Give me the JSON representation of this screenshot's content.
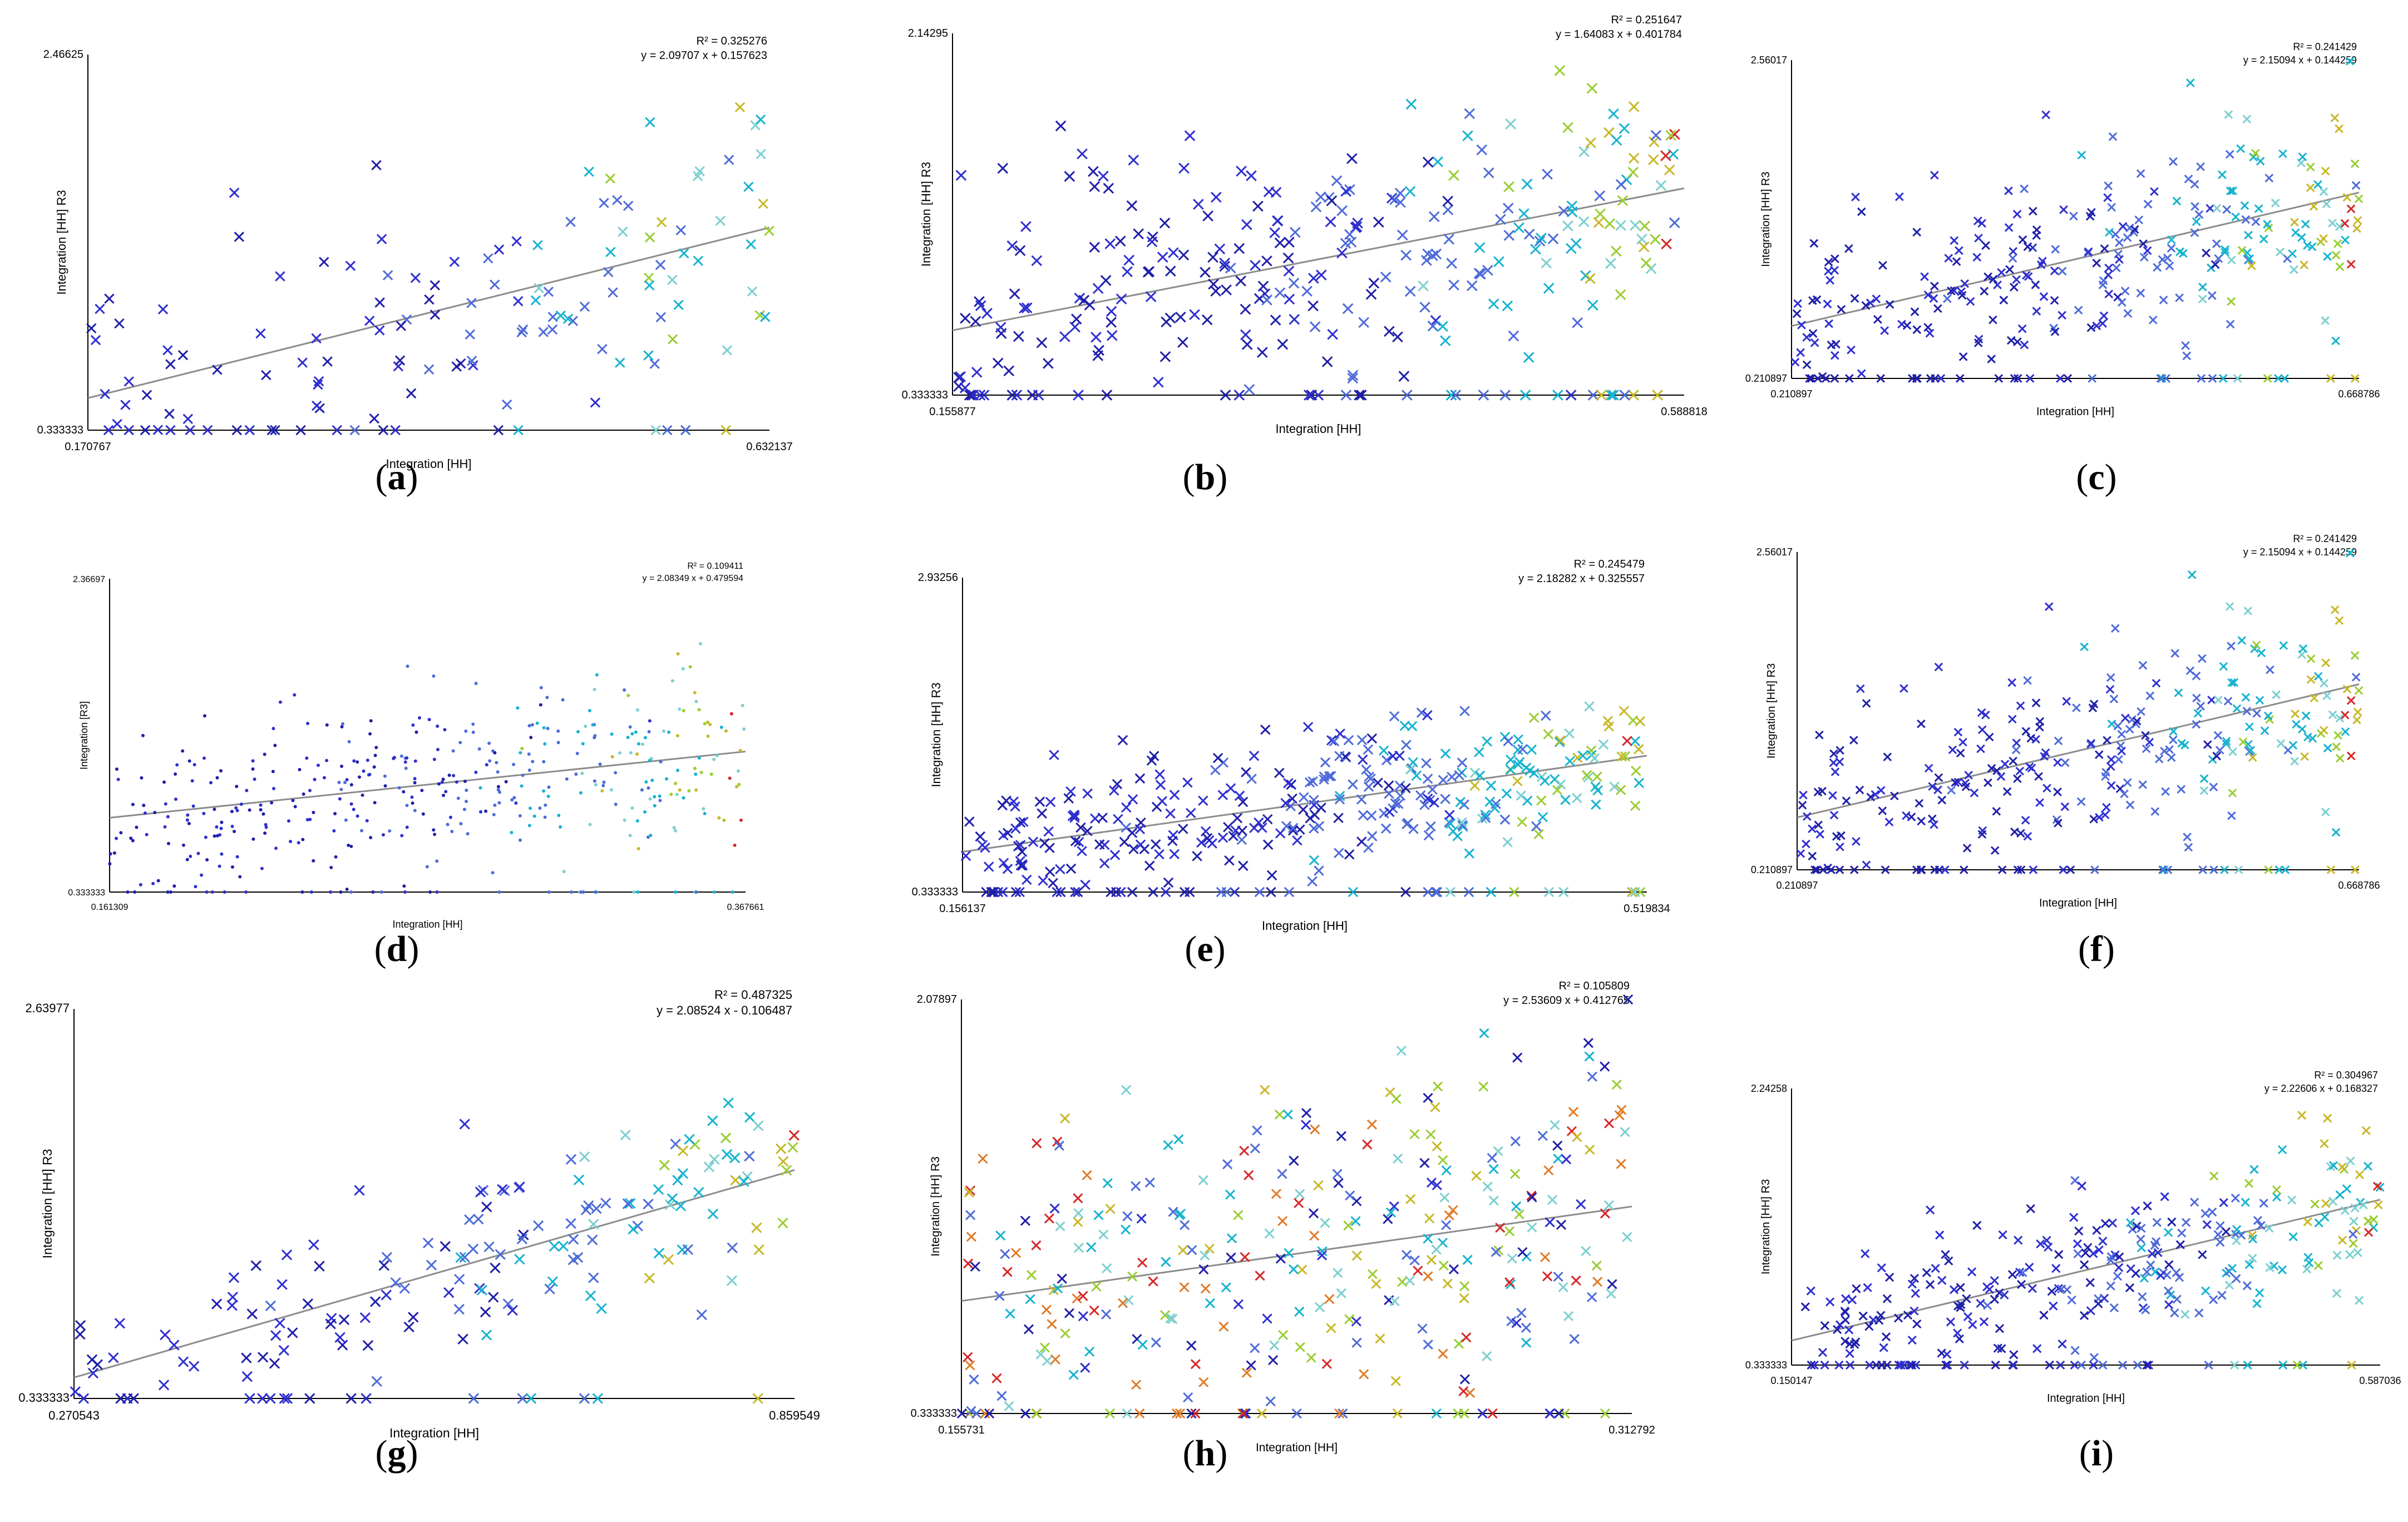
{
  "figure": {
    "label_open": "(",
    "label_close": ")",
    "colors": {
      "axis": "#000000",
      "trend": "#8c8c8c",
      "palette": [
        "#1f1fa8",
        "#2f2fd0",
        "#4e6bd8",
        "#17b3cf",
        "#7ccfd0",
        "#9acd32",
        "#c8b828",
        "#e07b28",
        "#d62728"
      ]
    }
  },
  "chart_data": [
    {
      "panel": "a",
      "type": "scatter",
      "title": "",
      "xlabel": "Integration [HH]",
      "ylabel": "Integration [HH] R3",
      "xlim": [
        0.170767,
        0.632137
      ],
      "ylim": [
        0.333333,
        2.46625
      ],
      "x_ticks": [
        "0.170767",
        "0.632137"
      ],
      "y_ticks": [
        "0.333333",
        "2.46625"
      ],
      "annotation": [
        "R² = 0.325276",
        "y = 2.09707 x + 0.157623"
      ],
      "regression": {
        "r2": 0.325276,
        "slope": 2.09707,
        "intercept": 0.157623
      },
      "marker": "x",
      "n_points": 140,
      "seed": 11,
      "residual_sd": 0.38
    },
    {
      "panel": "b",
      "type": "scatter",
      "title": "",
      "xlabel": "Integration [HH]",
      "ylabel": "Integration [HH] R3",
      "xlim": [
        0.155877,
        0.588818
      ],
      "ylim": [
        0.333333,
        2.14295
      ],
      "x_ticks": [
        "0.155877",
        "0.588818"
      ],
      "y_ticks": [
        "0.333333",
        "2.14295"
      ],
      "annotation": [
        "R² = 0.251647",
        "y = 1.64083 x + 0.401784"
      ],
      "regression": {
        "r2": 0.251647,
        "slope": 1.64083,
        "intercept": 0.401784
      },
      "marker": "x",
      "n_points": 300,
      "seed": 23,
      "residual_sd": 0.28
    },
    {
      "panel": "c",
      "type": "scatter",
      "title": "",
      "xlabel": "Integration [HH]",
      "ylabel": "Integration [HH] R3",
      "xlim": [
        0.210897,
        0.668786
      ],
      "ylim": [
        0.210897,
        2.56017
      ],
      "x_ticks": [
        "0.210897",
        "0.668786"
      ],
      "y_ticks": [
        "0.210897",
        "2.56017"
      ],
      "annotation": [
        "R² = 0.241429",
        "y = 2.15094 x + 0.144259"
      ],
      "regression": {
        "r2": 0.241429,
        "slope": 2.15094,
        "intercept": 0.144259
      },
      "marker": "x",
      "n_points": 300,
      "seed": 37,
      "residual_sd": 0.36
    },
    {
      "panel": "d",
      "type": "scatter",
      "title": "",
      "xlabel": "Integration [HH]",
      "ylabel": "Integration [R3]",
      "xlim": [
        0.161309,
        0.367661
      ],
      "ylim": [
        0.333333,
        2.36697
      ],
      "x_ticks": [
        "0.161309",
        "0.367661"
      ],
      "y_ticks": [
        "0.333333",
        "2.36697"
      ],
      "annotation": [
        "R² = 0.109411",
        "y = 2.08349 x + 0.479594"
      ],
      "regression": {
        "r2": 0.109411,
        "slope": 2.08349,
        "intercept": 0.479594
      },
      "marker": "dot",
      "n_points": 420,
      "seed": 41,
      "residual_sd": 0.3
    },
    {
      "panel": "e",
      "type": "scatter",
      "title": "",
      "xlabel": "Integration [HH]",
      "ylabel": "Integration [HH] R3",
      "xlim": [
        0.156137,
        0.519834
      ],
      "ylim": [
        0.333333,
        2.93256
      ],
      "x_ticks": [
        "0.156137",
        "0.519834"
      ],
      "y_ticks": [
        "0.333333",
        "2.93256"
      ],
      "annotation": [
        "R² = 0.245479",
        "y = 2.18282 x + 0.325557"
      ],
      "regression": {
        "r2": 0.245479,
        "slope": 2.18282,
        "intercept": 0.325557
      },
      "marker": "x",
      "n_points": 360,
      "seed": 53,
      "residual_sd": 0.3
    },
    {
      "panel": "f",
      "type": "scatter",
      "title": "",
      "xlabel": "Integration [HH]",
      "ylabel": "Integration [HH] R3",
      "xlim": [
        0.210897,
        0.668786
      ],
      "ylim": [
        0.210897,
        2.56017
      ],
      "x_ticks": [
        "0.210897",
        "0.668786"
      ],
      "y_ticks": [
        "0.210897",
        "2.56017"
      ],
      "annotation": [
        "R² = 0.241429",
        "y = 2.15094 x + 0.144259"
      ],
      "regression": {
        "r2": 0.241429,
        "slope": 2.15094,
        "intercept": 0.144259
      },
      "marker": "x",
      "n_points": 300,
      "seed": 37,
      "residual_sd": 0.36
    },
    {
      "panel": "g",
      "type": "scatter",
      "title": "",
      "xlabel": "Integration [HH]",
      "ylabel": "Integration [HH] R3",
      "xlim": [
        0.270543,
        0.859549
      ],
      "ylim": [
        0.333333,
        2.63977
      ],
      "x_ticks": [
        "0.270543",
        "0.859549"
      ],
      "y_ticks": [
        "0.333333",
        "2.63977"
      ],
      "annotation": [
        "R² = 0.487325",
        "y = 2.08524 x - 0.106487"
      ],
      "regression": {
        "r2": 0.487325,
        "slope": 2.08524,
        "intercept": -0.106487
      },
      "marker": "x",
      "n_points": 170,
      "seed": 67,
      "residual_sd": 0.25
    },
    {
      "panel": "h",
      "type": "scatter",
      "title": "",
      "xlabel": "Integration [HH]",
      "ylabel": "Integration [HH] R3",
      "xlim": [
        0.155731,
        0.312792
      ],
      "ylim": [
        0.333333,
        2.07897
      ],
      "x_ticks": [
        "0.155731",
        "0.312792"
      ],
      "y_ticks": [
        "0.333333",
        "2.07897"
      ],
      "annotation": [
        "R² = 0.105809",
        "y = 2.53609 x + 0.412765"
      ],
      "regression": {
        "r2": 0.105809,
        "slope": 2.53609,
        "intercept": 0.412765
      },
      "marker": "x",
      "n_points": 330,
      "seed": 71,
      "residual_sd": 0.36,
      "multicolor": true
    },
    {
      "panel": "i",
      "type": "scatter",
      "title": "",
      "xlabel": "Integration [HH]",
      "ylabel": "Integration [HH] R3",
      "xlim": [
        0.150147,
        0.587036
      ],
      "ylim": [
        0.333333,
        2.24258
      ],
      "x_ticks": [
        "0.150147",
        "0.587036"
      ],
      "y_ticks": [
        "0.333333",
        "2.24258"
      ],
      "annotation": [
        "R² = 0.304967",
        "y = 2.22606 x + 0.168327"
      ],
      "regression": {
        "r2": 0.304967,
        "slope": 2.22606,
        "intercept": 0.168327
      },
      "marker": "x",
      "n_points": 300,
      "seed": 83,
      "residual_sd": 0.27
    }
  ]
}
